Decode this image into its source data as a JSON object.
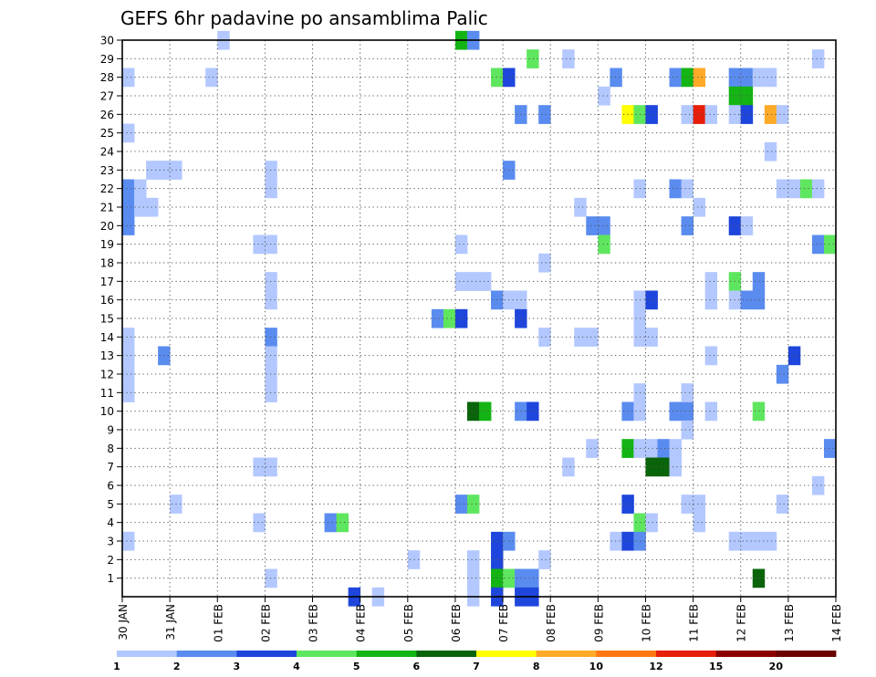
{
  "chart_data": {
    "type": "heatmap",
    "title": "GEFS 6hr padavine po ansamblima Palic",
    "xlabel": "",
    "ylabel": "",
    "x_tick_labels": [
      "30 JAN",
      "31 JAN",
      "01 FEB",
      "02 FEB",
      "03 FEB",
      "04 FEB",
      "05 FEB",
      "06 FEB",
      "07 FEB",
      "08 FEB",
      "09 FEB",
      "10 FEB",
      "11 FEB",
      "12 FEB",
      "13 FEB",
      "14 FEB"
    ],
    "y_tick_labels": [
      1,
      2,
      3,
      4,
      5,
      6,
      7,
      8,
      9,
      10,
      11,
      12,
      13,
      14,
      15,
      16,
      17,
      18,
      19,
      20,
      21,
      22,
      23,
      24,
      25,
      26,
      27,
      28,
      29,
      30
    ],
    "xlim": [
      0,
      60
    ],
    "ylim": [
      0,
      30
    ],
    "grid": true,
    "levels": [
      1,
      2,
      3,
      4,
      5,
      6,
      7,
      8,
      10,
      12,
      15,
      20
    ],
    "level_labels": [
      "1",
      "2",
      "3",
      "4",
      "5",
      "6",
      "7",
      "8",
      "10",
      "12",
      "15",
      "20"
    ],
    "colors": [
      "#b3c8ff",
      "#5a8cf0",
      "#1e46dc",
      "#5fe65f",
      "#14b414",
      "#0a640a",
      "#ffff00",
      "#ffaa28",
      "#ff7814",
      "#e61e0a",
      "#8c0000",
      "#6a0000"
    ],
    "cells": [
      {
        "t": 0,
        "m": 28,
        "c": 0
      },
      {
        "t": 0,
        "m": 25,
        "c": 0
      },
      {
        "t": 0,
        "m": 22,
        "c": 1
      },
      {
        "t": 0,
        "m": 21,
        "c": 1
      },
      {
        "t": 0,
        "m": 20,
        "c": 1
      },
      {
        "t": 0,
        "m": 14,
        "c": 0
      },
      {
        "t": 0,
        "m": 12,
        "c": 0
      },
      {
        "t": 0,
        "m": 11,
        "c": 0
      },
      {
        "t": 0,
        "m": 13,
        "c": 0
      },
      {
        "t": 0,
        "m": 3,
        "c": 0
      },
      {
        "t": 1,
        "m": 22,
        "c": 0
      },
      {
        "t": 1,
        "m": 21,
        "c": 0
      },
      {
        "t": 2,
        "m": 23,
        "c": 0
      },
      {
        "t": 2,
        "m": 21,
        "c": 0
      },
      {
        "t": 3,
        "m": 23,
        "c": 0
      },
      {
        "t": 4,
        "m": 23,
        "c": 0
      },
      {
        "t": 3,
        "m": 13,
        "c": 1
      },
      {
        "t": 4,
        "m": 5,
        "c": 0
      },
      {
        "t": 7,
        "m": 28,
        "c": 0
      },
      {
        "t": 8,
        "m": 30,
        "c": 0
      },
      {
        "t": 11,
        "m": 19,
        "c": 0
      },
      {
        "t": 11,
        "m": 7,
        "c": 0
      },
      {
        "t": 11,
        "m": 4,
        "c": 0
      },
      {
        "t": 12,
        "m": 23,
        "c": 0
      },
      {
        "t": 12,
        "m": 22,
        "c": 0
      },
      {
        "t": 12,
        "m": 19,
        "c": 0
      },
      {
        "t": 12,
        "m": 17,
        "c": 0
      },
      {
        "t": 12,
        "m": 16,
        "c": 0
      },
      {
        "t": 12,
        "m": 14,
        "c": 1
      },
      {
        "t": 12,
        "m": 13,
        "c": 0
      },
      {
        "t": 12,
        "m": 12,
        "c": 0
      },
      {
        "t": 12,
        "m": 11,
        "c": 0
      },
      {
        "t": 12,
        "m": 7,
        "c": 0
      },
      {
        "t": 12,
        "m": 1,
        "c": 0
      },
      {
        "t": 17,
        "m": 4,
        "c": 1
      },
      {
        "t": 18,
        "m": 4,
        "c": 3
      },
      {
        "t": 19,
        "m": 0,
        "c": 2
      },
      {
        "t": 21,
        "m": 0,
        "c": 0
      },
      {
        "t": 24,
        "m": 2,
        "c": 0
      },
      {
        "t": 26,
        "m": 15,
        "c": 1
      },
      {
        "t": 27,
        "m": 15,
        "c": 3
      },
      {
        "t": 28,
        "m": 15,
        "c": 2
      },
      {
        "t": 28,
        "m": 19,
        "c": 0
      },
      {
        "t": 28,
        "m": 17,
        "c": 0
      },
      {
        "t": 29,
        "m": 17,
        "c": 0
      },
      {
        "t": 30,
        "m": 17,
        "c": 0
      },
      {
        "t": 28,
        "m": 5,
        "c": 1
      },
      {
        "t": 29,
        "m": 5,
        "c": 3
      },
      {
        "t": 28,
        "m": 30,
        "c": 4
      },
      {
        "t": 29,
        "m": 30,
        "c": 1
      },
      {
        "t": 29,
        "m": 10,
        "c": 5
      },
      {
        "t": 30,
        "m": 10,
        "c": 4
      },
      {
        "t": 29,
        "m": 2,
        "c": 0
      },
      {
        "t": 29,
        "m": 1,
        "c": 0
      },
      {
        "t": 29,
        "m": 0,
        "c": 0
      },
      {
        "t": 31,
        "m": 16,
        "c": 1
      },
      {
        "t": 32,
        "m": 16,
        "c": 0
      },
      {
        "t": 33,
        "m": 16,
        "c": 0
      },
      {
        "t": 31,
        "m": 28,
        "c": 3
      },
      {
        "t": 32,
        "m": 28,
        "c": 2
      },
      {
        "t": 31,
        "m": 3,
        "c": 2
      },
      {
        "t": 31,
        "m": 2,
        "c": 2
      },
      {
        "t": 31,
        "m": 1,
        "c": 4
      },
      {
        "t": 31,
        "m": 0,
        "c": 2
      },
      {
        "t": 32,
        "m": 1,
        "c": 3
      },
      {
        "t": 32,
        "m": 3,
        "c": 1
      },
      {
        "t": 32,
        "m": 23,
        "c": 1
      },
      {
        "t": 33,
        "m": 26,
        "c": 1
      },
      {
        "t": 33,
        "m": 15,
        "c": 2
      },
      {
        "t": 33,
        "m": 10,
        "c": 1
      },
      {
        "t": 33,
        "m": 1,
        "c": 1
      },
      {
        "t": 33,
        "m": 0,
        "c": 2
      },
      {
        "t": 34,
        "m": 29,
        "c": 3
      },
      {
        "t": 34,
        "m": 10,
        "c": 2
      },
      {
        "t": 34,
        "m": 1,
        "c": 1
      },
      {
        "t": 34,
        "m": 0,
        "c": 2
      },
      {
        "t": 35,
        "m": 26,
        "c": 1
      },
      {
        "t": 35,
        "m": 18,
        "c": 0
      },
      {
        "t": 35,
        "m": 14,
        "c": 0
      },
      {
        "t": 35,
        "m": 2,
        "c": 0
      },
      {
        "t": 37,
        "m": 29,
        "c": 0
      },
      {
        "t": 37,
        "m": 7,
        "c": 0
      },
      {
        "t": 38,
        "m": 21,
        "c": 0
      },
      {
        "t": 38,
        "m": 14,
        "c": 0
      },
      {
        "t": 39,
        "m": 14,
        "c": 0
      },
      {
        "t": 39,
        "m": 20,
        "c": 1
      },
      {
        "t": 40,
        "m": 20,
        "c": 1
      },
      {
        "t": 40,
        "m": 19,
        "c": 3
      },
      {
        "t": 39,
        "m": 8,
        "c": 0
      },
      {
        "t": 40,
        "m": 27,
        "c": 0
      },
      {
        "t": 41,
        "m": 28,
        "c": 1
      },
      {
        "t": 41,
        "m": 3,
        "c": 0
      },
      {
        "t": 42,
        "m": 26,
        "c": 6
      },
      {
        "t": 43,
        "m": 26,
        "c": 3
      },
      {
        "t": 44,
        "m": 26,
        "c": 2
      },
      {
        "t": 42,
        "m": 10,
        "c": 1
      },
      {
        "t": 42,
        "m": 8,
        "c": 4
      },
      {
        "t": 42,
        "m": 5,
        "c": 2
      },
      {
        "t": 42,
        "m": 3,
        "c": 2
      },
      {
        "t": 43,
        "m": 22,
        "c": 0
      },
      {
        "t": 43,
        "m": 16,
        "c": 0
      },
      {
        "t": 43,
        "m": 15,
        "c": 0
      },
      {
        "t": 43,
        "m": 14,
        "c": 0
      },
      {
        "t": 43,
        "m": 11,
        "c": 0
      },
      {
        "t": 43,
        "m": 10,
        "c": 0
      },
      {
        "t": 43,
        "m": 8,
        "c": 0
      },
      {
        "t": 43,
        "m": 4,
        "c": 3
      },
      {
        "t": 43,
        "m": 3,
        "c": 1
      },
      {
        "t": 44,
        "m": 16,
        "c": 2
      },
      {
        "t": 44,
        "m": 14,
        "c": 0
      },
      {
        "t": 44,
        "m": 8,
        "c": 0
      },
      {
        "t": 44,
        "m": 7,
        "c": 5
      },
      {
        "t": 44,
        "m": 4,
        "c": 0
      },
      {
        "t": 45,
        "m": 8,
        "c": 1
      },
      {
        "t": 45,
        "m": 7,
        "c": 5
      },
      {
        "t": 46,
        "m": 28,
        "c": 1
      },
      {
        "t": 46,
        "m": 22,
        "c": 1
      },
      {
        "t": 46,
        "m": 10,
        "c": 1
      },
      {
        "t": 46,
        "m": 8,
        "c": 0
      },
      {
        "t": 46,
        "m": 7,
        "c": 0
      },
      {
        "t": 47,
        "m": 28,
        "c": 4
      },
      {
        "t": 47,
        "m": 22,
        "c": 0
      },
      {
        "t": 47,
        "m": 20,
        "c": 1
      },
      {
        "t": 47,
        "m": 10,
        "c": 1
      },
      {
        "t": 47,
        "m": 11,
        "c": 0
      },
      {
        "t": 47,
        "m": 9,
        "c": 0
      },
      {
        "t": 47,
        "m": 5,
        "c": 0
      },
      {
        "t": 47,
        "m": 26,
        "c": 0
      },
      {
        "t": 48,
        "m": 28,
        "c": 7
      },
      {
        "t": 48,
        "m": 26,
        "c": 9
      },
      {
        "t": 48,
        "m": 21,
        "c": 0
      },
      {
        "t": 48,
        "m": 5,
        "c": 0
      },
      {
        "t": 48,
        "m": 4,
        "c": 0
      },
      {
        "t": 49,
        "m": 26,
        "c": 0
      },
      {
        "t": 49,
        "m": 17,
        "c": 0
      },
      {
        "t": 49,
        "m": 16,
        "c": 0
      },
      {
        "t": 49,
        "m": 13,
        "c": 0
      },
      {
        "t": 49,
        "m": 10,
        "c": 0
      },
      {
        "t": 51,
        "m": 28,
        "c": 1
      },
      {
        "t": 51,
        "m": 27,
        "c": 4
      },
      {
        "t": 51,
        "m": 26,
        "c": 0
      },
      {
        "t": 51,
        "m": 20,
        "c": 2
      },
      {
        "t": 51,
        "m": 17,
        "c": 3
      },
      {
        "t": 51,
        "m": 16,
        "c": 0
      },
      {
        "t": 51,
        "m": 3,
        "c": 0
      },
      {
        "t": 52,
        "m": 28,
        "c": 1
      },
      {
        "t": 52,
        "m": 27,
        "c": 4
      },
      {
        "t": 52,
        "m": 26,
        "c": 2
      },
      {
        "t": 52,
        "m": 20,
        "c": 0
      },
      {
        "t": 52,
        "m": 16,
        "c": 1
      },
      {
        "t": 52,
        "m": 3,
        "c": 0
      },
      {
        "t": 53,
        "m": 28,
        "c": 0
      },
      {
        "t": 53,
        "m": 17,
        "c": 1
      },
      {
        "t": 53,
        "m": 16,
        "c": 1
      },
      {
        "t": 53,
        "m": 10,
        "c": 3
      },
      {
        "t": 53,
        "m": 1,
        "c": 5
      },
      {
        "t": 53,
        "m": 3,
        "c": 0
      },
      {
        "t": 54,
        "m": 28,
        "c": 0
      },
      {
        "t": 54,
        "m": 26,
        "c": 7
      },
      {
        "t": 54,
        "m": 24,
        "c": 0
      },
      {
        "t": 54,
        "m": 3,
        "c": 0
      },
      {
        "t": 55,
        "m": 26,
        "c": 0
      },
      {
        "t": 55,
        "m": 22,
        "c": 0
      },
      {
        "t": 55,
        "m": 5,
        "c": 0
      },
      {
        "t": 55,
        "m": 12,
        "c": 1
      },
      {
        "t": 56,
        "m": 22,
        "c": 0
      },
      {
        "t": 56,
        "m": 13,
        "c": 2
      },
      {
        "t": 57,
        "m": 22,
        "c": 3
      },
      {
        "t": 58,
        "m": 29,
        "c": 0
      },
      {
        "t": 58,
        "m": 22,
        "c": 0
      },
      {
        "t": 58,
        "m": 19,
        "c": 1
      },
      {
        "t": 58,
        "m": 6,
        "c": 0
      },
      {
        "t": 59,
        "m": 19,
        "c": 3
      },
      {
        "t": 59,
        "m": 8,
        "c": 1
      }
    ]
  }
}
